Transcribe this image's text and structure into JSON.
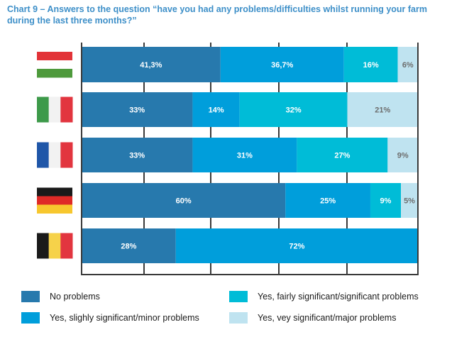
{
  "title": {
    "line1": "Chart 9 – Answers to the question “have you had any problems/difficulties whilst running your farm",
    "line2": "during the last three months?”"
  },
  "colors": {
    "no_problems": "#2779ad",
    "minor": "#009edb",
    "significant": "#00bcd7",
    "major": "#bfe3f0",
    "axis": "#3a3a3a",
    "title": "#3d8fc8"
  },
  "chart_data": {
    "type": "bar",
    "orientation": "horizontal",
    "stacked": true,
    "categories": [
      "Hungary",
      "Italy",
      "France",
      "Germany",
      "Belgium"
    ],
    "category_display": [
      "flag-hungary-icon",
      "flag-italy-icon",
      "flag-france-icon",
      "flag-germany-icon",
      "flag-belgium-icon"
    ],
    "series": [
      {
        "name": "No problems",
        "color": "#2779ad",
        "values": [
          41.3,
          33,
          33,
          60,
          28
        ],
        "labels": [
          "41,3%",
          "33%",
          "33%",
          "60%",
          "28%"
        ]
      },
      {
        "name": "Yes, slighly significant/minor problems",
        "color": "#009edb",
        "values": [
          36.7,
          14,
          31,
          25,
          72
        ],
        "labels": [
          "36,7%",
          "14%",
          "31%",
          "25%",
          "72%"
        ]
      },
      {
        "name": "Yes, fairly significant/significant problems",
        "color": "#00bcd7",
        "values": [
          16,
          32,
          27,
          9,
          0
        ],
        "labels": [
          "16%",
          "32%",
          "27%",
          "9%",
          ""
        ]
      },
      {
        "name": "Yes, vey significant/major problems",
        "color": "#bfe3f0",
        "values": [
          6,
          21,
          9,
          5,
          0
        ],
        "labels": [
          "6%",
          "21%",
          "9%",
          "5%",
          ""
        ]
      }
    ],
    "xlim": [
      0,
      100
    ],
    "grid": false,
    "legend_position": "bottom"
  },
  "legend": [
    {
      "label": "No problems",
      "color": "#2779ad"
    },
    {
      "label": "Yes, fairly significant/significant problems",
      "color": "#00bcd7"
    },
    {
      "label": "Yes, slighly significant/minor problems",
      "color": "#009edb"
    },
    {
      "label": "Yes, vey significant/major problems",
      "color": "#bfe3f0"
    }
  ]
}
